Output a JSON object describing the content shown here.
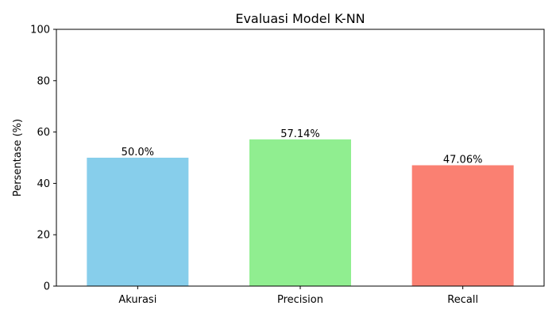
{
  "chart_data": {
    "type": "bar",
    "title": "Evaluasi Model K-NN",
    "xlabel": "",
    "ylabel": "Persentase (%)",
    "categories": [
      "Akurasi",
      "Precision",
      "Recall"
    ],
    "values": [
      50.0,
      57.14,
      47.06
    ],
    "data_labels": [
      "50.0%",
      "57.14%",
      "47.06%"
    ],
    "colors": [
      "#87ceeb",
      "#90ee90",
      "#fa8072"
    ],
    "ylim": [
      0,
      100
    ],
    "yticks": [
      0,
      20,
      40,
      60,
      80,
      100
    ],
    "grid": false,
    "legend": "none"
  }
}
